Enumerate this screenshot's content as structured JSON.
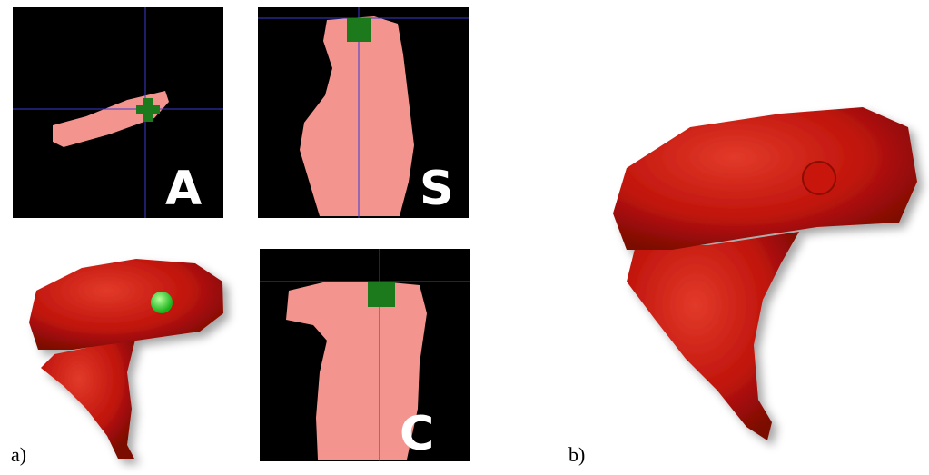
{
  "panels": [
    {
      "label": "A"
    },
    {
      "label": "S"
    },
    {
      "label": "C"
    }
  ],
  "captions": [
    "a)",
    "b)"
  ]
}
